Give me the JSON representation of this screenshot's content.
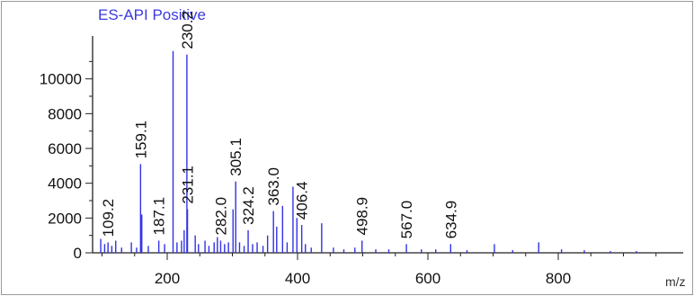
{
  "chart_data": {
    "type": "bar",
    "title": "ES-API Positive",
    "xlabel": "m/z",
    "ylabel": "",
    "xlim": [
      90,
      960
    ],
    "ylim": [
      0,
      12000
    ],
    "x_ticks": [
      200,
      400,
      600,
      800
    ],
    "y_ticks": [
      0,
      2000,
      4000,
      6000,
      8000,
      10000
    ],
    "grid": false,
    "legend": "none",
    "series_color": "#3232e6",
    "labeled_peaks": [
      {
        "mz": 109.2,
        "intensity": 600,
        "label": "109.2"
      },
      {
        "mz": 159.1,
        "intensity": 5100,
        "label": "159.1"
      },
      {
        "mz": 187.1,
        "intensity": 700,
        "label": "187.1"
      },
      {
        "mz": 230.2,
        "intensity": 11400,
        "label": "230.2"
      },
      {
        "mz": 231.1,
        "intensity": 2500,
        "label": "231.1"
      },
      {
        "mz": 282.0,
        "intensity": 700,
        "label": "282.0"
      },
      {
        "mz": 305.1,
        "intensity": 4100,
        "label": "305.1"
      },
      {
        "mz": 324.2,
        "intensity": 1300,
        "label": "324.2"
      },
      {
        "mz": 363.0,
        "intensity": 2400,
        "label": "363.0"
      },
      {
        "mz": 406.4,
        "intensity": 1600,
        "label": "406.4"
      },
      {
        "mz": 498.9,
        "intensity": 700,
        "label": "498.9"
      },
      {
        "mz": 567.0,
        "intensity": 500,
        "label": "567.0"
      },
      {
        "mz": 634.9,
        "intensity": 500,
        "label": "634.9"
      }
    ],
    "other_peaks": [
      {
        "mz": 98,
        "intensity": 800
      },
      {
        "mz": 104,
        "intensity": 500
      },
      {
        "mz": 115,
        "intensity": 400
      },
      {
        "mz": 121,
        "intensity": 700
      },
      {
        "mz": 130,
        "intensity": 300
      },
      {
        "mz": 145,
        "intensity": 600
      },
      {
        "mz": 153,
        "intensity": 300
      },
      {
        "mz": 161,
        "intensity": 2200
      },
      {
        "mz": 171,
        "intensity": 400
      },
      {
        "mz": 196,
        "intensity": 500
      },
      {
        "mz": 209,
        "intensity": 11600
      },
      {
        "mz": 215,
        "intensity": 600
      },
      {
        "mz": 222,
        "intensity": 700
      },
      {
        "mz": 226,
        "intensity": 1300
      },
      {
        "mz": 243,
        "intensity": 1000
      },
      {
        "mz": 248,
        "intensity": 500
      },
      {
        "mz": 258,
        "intensity": 700
      },
      {
        "mz": 264,
        "intensity": 400
      },
      {
        "mz": 272,
        "intensity": 600
      },
      {
        "mz": 277,
        "intensity": 900
      },
      {
        "mz": 288,
        "intensity": 500
      },
      {
        "mz": 294,
        "intensity": 600
      },
      {
        "mz": 301,
        "intensity": 2500
      },
      {
        "mz": 311,
        "intensity": 600
      },
      {
        "mz": 318,
        "intensity": 400
      },
      {
        "mz": 331,
        "intensity": 500
      },
      {
        "mz": 338,
        "intensity": 600
      },
      {
        "mz": 347,
        "intensity": 400
      },
      {
        "mz": 354,
        "intensity": 1000
      },
      {
        "mz": 368,
        "intensity": 1500
      },
      {
        "mz": 377,
        "intensity": 2700
      },
      {
        "mz": 384,
        "intensity": 600
      },
      {
        "mz": 393,
        "intensity": 3800
      },
      {
        "mz": 399,
        "intensity": 2000
      },
      {
        "mz": 412,
        "intensity": 500
      },
      {
        "mz": 421,
        "intensity": 300
      },
      {
        "mz": 437,
        "intensity": 1700
      },
      {
        "mz": 455,
        "intensity": 300
      },
      {
        "mz": 471,
        "intensity": 200
      },
      {
        "mz": 488,
        "intensity": 300
      },
      {
        "mz": 520,
        "intensity": 200
      },
      {
        "mz": 540,
        "intensity": 200
      },
      {
        "mz": 590,
        "intensity": 200
      },
      {
        "mz": 612,
        "intensity": 200
      },
      {
        "mz": 660,
        "intensity": 150
      },
      {
        "mz": 702,
        "intensity": 500
      },
      {
        "mz": 730,
        "intensity": 150
      },
      {
        "mz": 770,
        "intensity": 600
      },
      {
        "mz": 805,
        "intensity": 200
      },
      {
        "mz": 840,
        "intensity": 150
      },
      {
        "mz": 880,
        "intensity": 100
      },
      {
        "mz": 920,
        "intensity": 100
      }
    ]
  }
}
